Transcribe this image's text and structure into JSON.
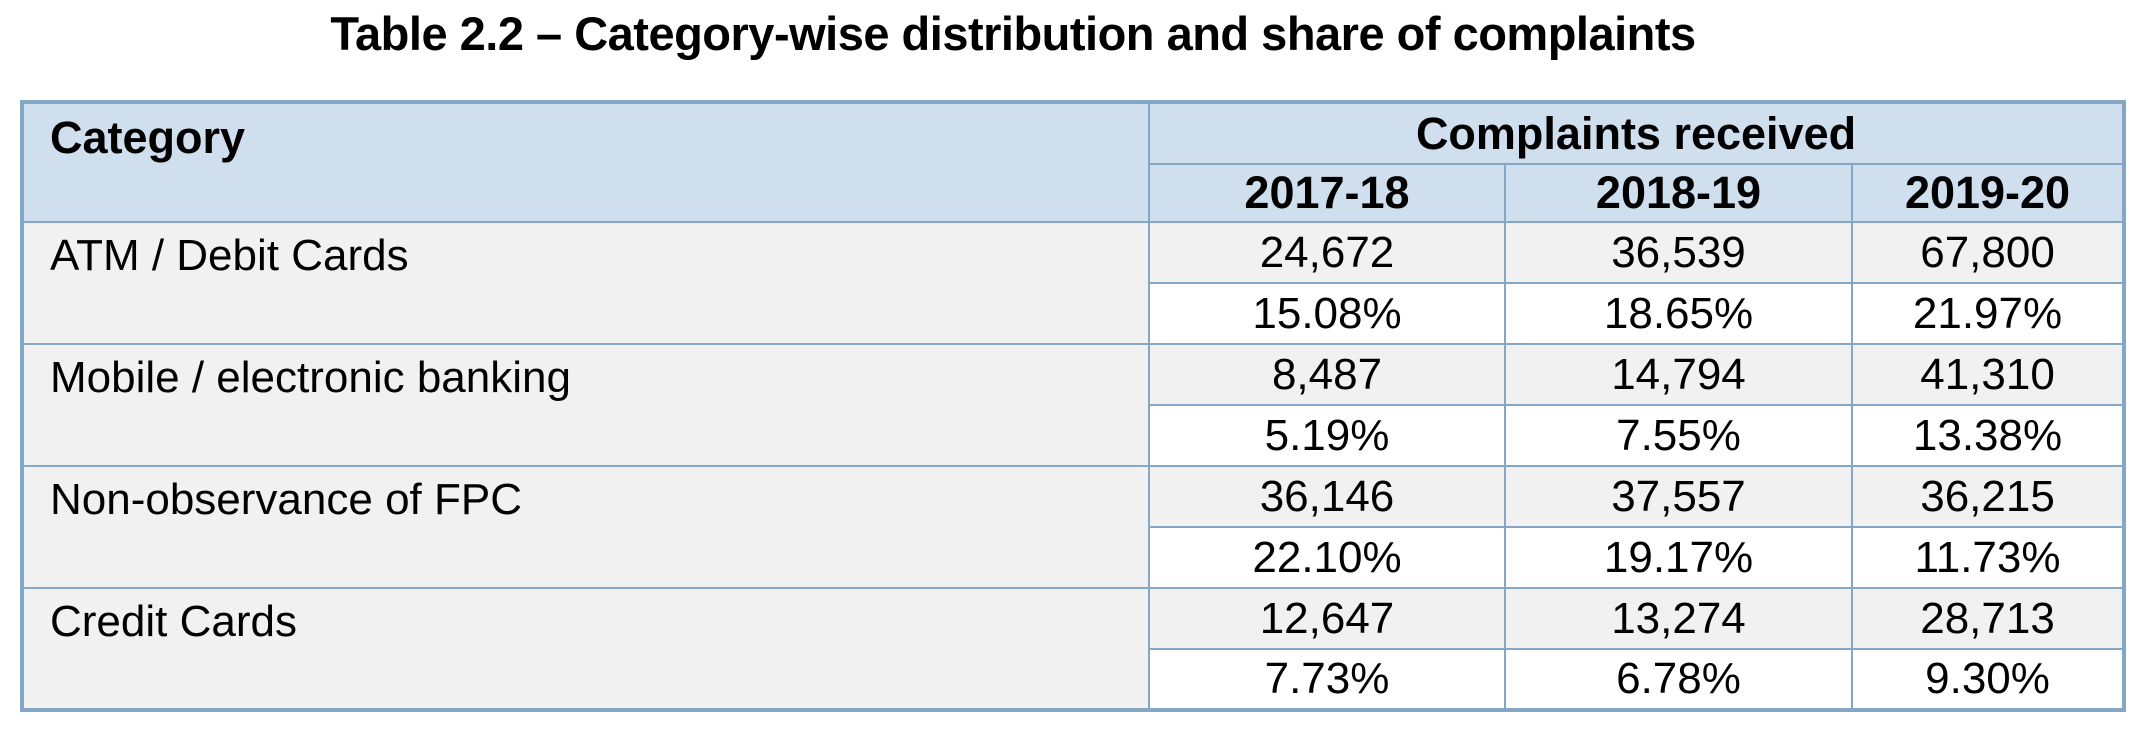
{
  "title": "Table 2.2 – Category-wise distribution and share of complaints",
  "table": {
    "category_header": "Category",
    "group_header": "Complaints received",
    "year_headers": [
      "2017-18",
      "2018-19",
      "2019-20"
    ],
    "rows": [
      {
        "category": "ATM / Debit Cards",
        "counts": [
          "24,672",
          "36,539",
          "67,800"
        ],
        "shares": [
          "15.08%",
          "18.65%",
          "21.97%"
        ]
      },
      {
        "category": "Mobile / electronic banking",
        "counts": [
          "8,487",
          "14,794",
          "41,310"
        ],
        "shares": [
          "5.19%",
          "7.55%",
          "13.38%"
        ]
      },
      {
        "category": "Non-observance of FPC",
        "counts": [
          "36,146",
          "37,557",
          "36,215"
        ],
        "shares": [
          "22.10%",
          "19.17%",
          "11.73%"
        ]
      },
      {
        "category": "Credit Cards",
        "counts": [
          "12,647",
          "13,274",
          "28,713"
        ],
        "shares": [
          "7.73%",
          "6.78%",
          "9.30%"
        ]
      }
    ]
  },
  "colors": {
    "border": "#84a7c6",
    "header_bg": "#cfdfee",
    "row_bg_count": "#f1f1f1",
    "row_bg_share": "#ffffff",
    "text": "#000000"
  }
}
